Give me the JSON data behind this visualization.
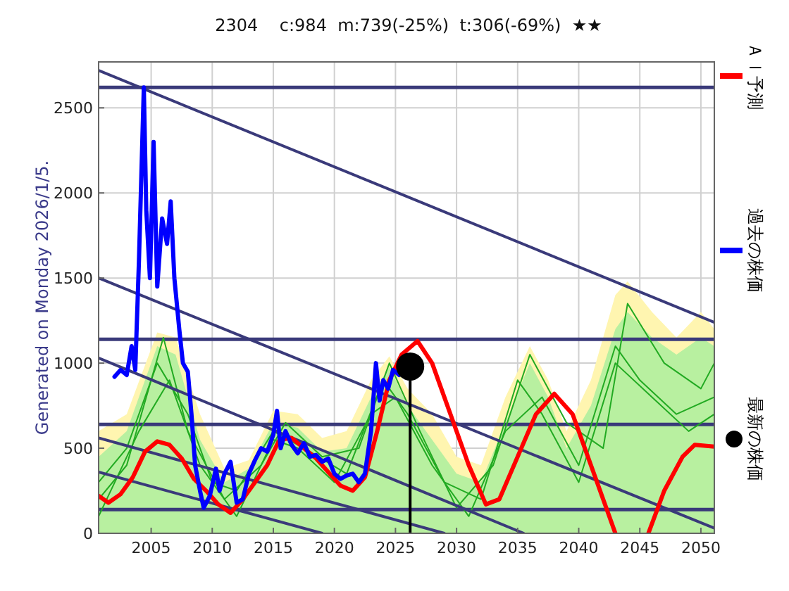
{
  "chart_data": {
    "type": "line",
    "title": "2304    c:984  m:739(-25%)  t:306(-69%)  ★★",
    "annotations": [
      "Generated on Monday 2026/1/5."
    ],
    "xlim": [
      2000.7,
      2051.1
    ],
    "ylim": [
      0,
      2770
    ],
    "xticks": [
      2005,
      2010,
      2015,
      2020,
      2025,
      2030,
      2035,
      2040,
      2045,
      2050
    ],
    "yticks": [
      0,
      500,
      1000,
      1500,
      2000,
      2500
    ],
    "grid": true,
    "legend": "right",
    "ref_lines": [
      {
        "axis": "y",
        "value": 2620,
        "color": "#3a3a7a"
      },
      {
        "axis": "y",
        "value": 1140,
        "color": "#3a3a7a"
      },
      {
        "axis": "y",
        "value": 640,
        "color": "#3a3a7a"
      },
      {
        "axis": "y",
        "value": 140,
        "color": "#3a3a7a"
      }
    ],
    "series": [
      {
        "type": "area",
        "color": "#fff5b0",
        "x": [
          2000.7,
          2003,
          2005.5,
          2007,
          2009,
          2011,
          2013,
          2015,
          2017,
          2019,
          2021,
          2023,
          2024.5,
          2026,
          2028,
          2030,
          2032,
          2034,
          2036,
          2037.5,
          2039,
          2041,
          2043,
          2044,
          2046,
          2048,
          2050,
          2051.1
        ],
        "values": [
          600,
          700,
          1180,
          1150,
          700,
          380,
          430,
          720,
          700,
          560,
          600,
          900,
          1040,
          850,
          700,
          450,
          400,
          800,
          1100,
          900,
          600,
          900,
          1400,
          1480,
          1300,
          1150,
          1300,
          1200
        ]
      },
      {
        "type": "area",
        "color": "#b8f0a0",
        "x": [
          2000.7,
          2003,
          2005.5,
          2007,
          2009,
          2011,
          2013,
          2015,
          2017,
          2019,
          2021,
          2023,
          2024.5,
          2026,
          2028,
          2030,
          2032,
          2034,
          2036,
          2037.5,
          2039,
          2041,
          2043,
          2044,
          2046,
          2048,
          2050,
          2051.1
        ],
        "values": [
          450,
          600,
          1100,
          1050,
          550,
          300,
          380,
          650,
          620,
          480,
          500,
          800,
          980,
          750,
          550,
          350,
          300,
          650,
          1000,
          800,
          500,
          750,
          1200,
          1300,
          1150,
          1050,
          1150,
          1100
        ]
      },
      {
        "type": "line",
        "color": "#22aa22",
        "x": [
          2000.7,
          2003,
          2005.5,
          2008,
          2010,
          2012,
          2015,
          2018,
          2021,
          2024,
          2026,
          2029,
          2032,
          2035,
          2037,
          2040,
          2043,
          2046,
          2049,
          2051.1
        ],
        "values": [
          300,
          500,
          1000,
          700,
          300,
          250,
          600,
          480,
          350,
          900,
          700,
          300,
          200,
          900,
          700,
          300,
          1000,
          800,
          600,
          700
        ]
      },
      {
        "type": "line",
        "color": "#22aa22",
        "x": [
          2000.7,
          2003,
          2006,
          2008,
          2011,
          2014,
          2016,
          2019,
          2022,
          2024.5,
          2027,
          2030,
          2033,
          2036,
          2039,
          2042,
          2044,
          2047,
          2050,
          2051.1
        ],
        "values": [
          200,
          400,
          1150,
          600,
          200,
          400,
          650,
          450,
          500,
          1000,
          600,
          150,
          400,
          1050,
          650,
          500,
          1350,
          1000,
          850,
          1000
        ]
      },
      {
        "type": "line",
        "color": "#22aa22",
        "x": [
          2000.7,
          2004,
          2006.5,
          2009,
          2012,
          2015,
          2017,
          2020,
          2023,
          2025,
          2028,
          2031,
          2034,
          2037,
          2040,
          2043,
          2045,
          2048,
          2051.1
        ],
        "values": [
          100,
          600,
          900,
          400,
          100,
          550,
          500,
          300,
          700,
          800,
          400,
          100,
          600,
          800,
          400,
          1100,
          900,
          700,
          800
        ]
      },
      {
        "type": "line",
        "color": "#3a3a7a",
        "x": [
          2000.7,
          2051.1
        ],
        "values": [
          2720,
          1240
        ]
      },
      {
        "type": "line",
        "color": "#3a3a7a",
        "x": [
          2000.7,
          2051.1
        ],
        "values": [
          1500,
          30
        ]
      },
      {
        "type": "line",
        "color": "#3a3a7a",
        "x": [
          2000.7,
          2035.5
        ],
        "values": [
          1030,
          0
        ]
      },
      {
        "type": "line",
        "color": "#3a3a7a",
        "x": [
          2000.7,
          2029
        ],
        "values": [
          560,
          0
        ]
      },
      {
        "type": "line",
        "color": "#3a3a7a",
        "x": [
          2000.7,
          2019
        ],
        "values": [
          360,
          0
        ]
      },
      {
        "color": "#000000",
        "x": [
          2026.2,
          2026.2
        ],
        "values": [
          0,
          980
        ]
      },
      {
        "type": "line",
        "name": "ＡＩ予測",
        "color": "#ff0000",
        "x": [
          2000.7,
          2001.5,
          2002.5,
          2003.5,
          2004.5,
          2005.5,
          2006.5,
          2007.5,
          2008.5,
          2009.5,
          2010.5,
          2011.5,
          2012.5,
          2013.5,
          2014.5,
          2015.5,
          2016.5,
          2017.5,
          2018.5,
          2019.5,
          2020.5,
          2021.5,
          2022.5,
          2023.5,
          2024.5,
          2025.5,
          2026.8,
          2028,
          2029.5,
          2031,
          2032.4,
          2033.5,
          2035,
          2036.5,
          2038,
          2039.5,
          2041,
          2043,
          2044.3,
          2045.7,
          2047,
          2048.5,
          2049.5,
          2051.1
        ],
        "values": [
          220,
          180,
          230,
          330,
          480,
          540,
          520,
          440,
          320,
          250,
          170,
          120,
          200,
          300,
          400,
          550,
          560,
          500,
          440,
          360,
          280,
          250,
          330,
          600,
          900,
          1050,
          1130,
          1000,
          700,
          400,
          170,
          200,
          450,
          700,
          820,
          700,
          400,
          0,
          null,
          0,
          250,
          450,
          520,
          510
        ]
      },
      {
        "type": "line",
        "name": "過去の株価",
        "color": "#0000ff",
        "x": [
          2002.0,
          2002.5,
          2003,
          2003.4,
          2003.7,
          2004.0,
          2004.4,
          2004.6,
          2004.9,
          2005.2,
          2005.5,
          2005.9,
          2006.3,
          2006.6,
          2006.9,
          2007.3,
          2007.6,
          2008.0,
          2008.3,
          2008.6,
          2009.0,
          2009.3,
          2009.8,
          2010.3,
          2010.6,
          2011.0,
          2011.5,
          2012.0,
          2012.5,
          2013,
          2013.5,
          2014,
          2014.5,
          2015,
          2015.3,
          2015.6,
          2016,
          2016.5,
          2017,
          2017.5,
          2018,
          2018.5,
          2019,
          2019.5,
          2020,
          2020.5,
          2021,
          2021.5,
          2022,
          2022.5,
          2023,
          2023.4,
          2023.7,
          2024,
          2024.4,
          2024.8,
          2025.3
        ],
        "values": [
          920,
          960,
          930,
          1100,
          960,
          1600,
          2620,
          1900,
          1500,
          2300,
          1450,
          1850,
          1700,
          1950,
          1500,
          1200,
          1000,
          950,
          700,
          400,
          250,
          150,
          220,
          380,
          250,
          350,
          420,
          180,
          200,
          350,
          430,
          500,
          480,
          580,
          720,
          500,
          600,
          520,
          470,
          530,
          450,
          460,
          420,
          440,
          350,
          320,
          340,
          350,
          300,
          350,
          600,
          1000,
          780,
          900,
          850,
          960,
          930
        ]
      },
      {
        "type": "scatter",
        "name": "最新の株価",
        "color": "#000000",
        "marker": "circle",
        "x": [
          2026.2
        ],
        "values": [
          980
        ]
      }
    ]
  }
}
